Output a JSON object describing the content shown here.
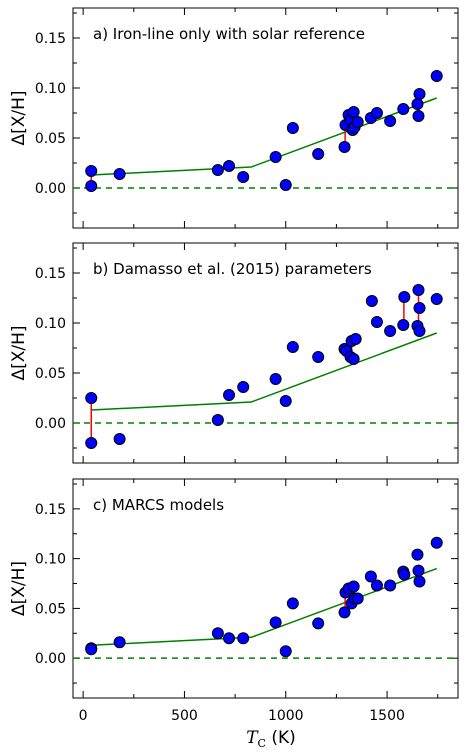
{
  "figure": {
    "ylabel": "Δ[X/H]",
    "xlabel": "T_C (K)",
    "xlabel_main": "T",
    "xlabel_sub": "C",
    "xlabel_unit": " (K)",
    "x_ticks": [
      "0",
      "500",
      "1000",
      "1500"
    ],
    "y_ticks": [
      "0.00",
      "0.05",
      "0.10",
      "0.15"
    ]
  },
  "colors": {
    "point_fill": "#0000ff",
    "point_edge": "#000000",
    "trend_line": "#008000",
    "zero_line": "#008000",
    "error_bar": "#ff0000"
  },
  "chart_data": [
    {
      "type": "scatter",
      "title": "a) Iron-line only with solar reference",
      "xlim": [
        -50,
        1850
      ],
      "ylim": [
        -0.04,
        0.18
      ],
      "grid": false,
      "points": [
        {
          "x": 40,
          "y": 0.017
        },
        {
          "x": 40,
          "y": 0.002
        },
        {
          "x": 180,
          "y": 0.014
        },
        {
          "x": 665,
          "y": 0.018
        },
        {
          "x": 720,
          "y": 0.022
        },
        {
          "x": 790,
          "y": 0.011
        },
        {
          "x": 950,
          "y": 0.031
        },
        {
          "x": 1000,
          "y": 0.003
        },
        {
          "x": 1035,
          "y": 0.06
        },
        {
          "x": 1160,
          "y": 0.034
        },
        {
          "x": 1290,
          "y": 0.041
        },
        {
          "x": 1295,
          "y": 0.063
        },
        {
          "x": 1310,
          "y": 0.073
        },
        {
          "x": 1320,
          "y": 0.068
        },
        {
          "x": 1330,
          "y": 0.058
        },
        {
          "x": 1335,
          "y": 0.076
        },
        {
          "x": 1340,
          "y": 0.061
        },
        {
          "x": 1355,
          "y": 0.066
        },
        {
          "x": 1420,
          "y": 0.07
        },
        {
          "x": 1450,
          "y": 0.075
        },
        {
          "x": 1515,
          "y": 0.067
        },
        {
          "x": 1580,
          "y": 0.079
        },
        {
          "x": 1650,
          "y": 0.084
        },
        {
          "x": 1655,
          "y": 0.072
        },
        {
          "x": 1660,
          "y": 0.094
        },
        {
          "x": 1745,
          "y": 0.112
        }
      ],
      "error_pairs": [
        {
          "x": 40,
          "y_low": 0.002,
          "y_high": 0.017
        },
        {
          "x": 1293,
          "y_low": 0.041,
          "y_high": 0.063
        },
        {
          "x": 1335,
          "y_low": 0.058,
          "y_high": 0.076
        },
        {
          "x": 1655,
          "y_low": 0.072,
          "y_high": 0.094
        }
      ],
      "trend": [
        {
          "x": 40,
          "y": 0.013
        },
        {
          "x": 830,
          "y": 0.021
        },
        {
          "x": 1745,
          "y": 0.09
        }
      ],
      "zero_line": 0
    },
    {
      "type": "scatter",
      "title": "b) Damasso et al. (2015) parameters",
      "xlim": [
        -50,
        1850
      ],
      "ylim": [
        -0.04,
        0.18
      ],
      "grid": false,
      "points": [
        {
          "x": 40,
          "y": 0.025
        },
        {
          "x": 40,
          "y": -0.02
        },
        {
          "x": 180,
          "y": -0.016
        },
        {
          "x": 665,
          "y": 0.003
        },
        {
          "x": 720,
          "y": 0.028
        },
        {
          "x": 790,
          "y": 0.036
        },
        {
          "x": 950,
          "y": 0.044
        },
        {
          "x": 1000,
          "y": 0.022
        },
        {
          "x": 1035,
          "y": 0.076
        },
        {
          "x": 1160,
          "y": 0.066
        },
        {
          "x": 1290,
          "y": 0.074
        },
        {
          "x": 1300,
          "y": 0.072
        },
        {
          "x": 1320,
          "y": 0.066
        },
        {
          "x": 1325,
          "y": 0.082
        },
        {
          "x": 1335,
          "y": 0.064
        },
        {
          "x": 1345,
          "y": 0.084
        },
        {
          "x": 1425,
          "y": 0.122
        },
        {
          "x": 1450,
          "y": 0.101
        },
        {
          "x": 1515,
          "y": 0.092
        },
        {
          "x": 1580,
          "y": 0.098
        },
        {
          "x": 1585,
          "y": 0.126
        },
        {
          "x": 1650,
          "y": 0.097
        },
        {
          "x": 1655,
          "y": 0.133
        },
        {
          "x": 1660,
          "y": 0.115
        },
        {
          "x": 1660,
          "y": 0.092
        },
        {
          "x": 1745,
          "y": 0.124
        }
      ],
      "error_pairs": [
        {
          "x": 40,
          "y_low": -0.02,
          "y_high": 0.025
        },
        {
          "x": 1325,
          "y_low": 0.064,
          "y_high": 0.084
        },
        {
          "x": 1583,
          "y_low": 0.098,
          "y_high": 0.126
        },
        {
          "x": 1655,
          "y_low": 0.092,
          "y_high": 0.133
        }
      ],
      "trend": [
        {
          "x": 40,
          "y": 0.013
        },
        {
          "x": 830,
          "y": 0.021
        },
        {
          "x": 1745,
          "y": 0.09
        }
      ],
      "zero_line": 0
    },
    {
      "type": "scatter",
      "title": "c) MARCS models",
      "xlim": [
        -50,
        1850
      ],
      "ylim": [
        -0.04,
        0.18
      ],
      "grid": false,
      "points": [
        {
          "x": 40,
          "y": 0.01
        },
        {
          "x": 40,
          "y": 0.009
        },
        {
          "x": 180,
          "y": 0.016
        },
        {
          "x": 665,
          "y": 0.025
        },
        {
          "x": 720,
          "y": 0.02
        },
        {
          "x": 790,
          "y": 0.02
        },
        {
          "x": 950,
          "y": 0.036
        },
        {
          "x": 1000,
          "y": 0.007
        },
        {
          "x": 1035,
          "y": 0.055
        },
        {
          "x": 1160,
          "y": 0.035
        },
        {
          "x": 1290,
          "y": 0.046
        },
        {
          "x": 1295,
          "y": 0.066
        },
        {
          "x": 1310,
          "y": 0.07
        },
        {
          "x": 1325,
          "y": 0.055
        },
        {
          "x": 1335,
          "y": 0.072
        },
        {
          "x": 1340,
          "y": 0.06
        },
        {
          "x": 1355,
          "y": 0.06
        },
        {
          "x": 1420,
          "y": 0.082
        },
        {
          "x": 1450,
          "y": 0.073
        },
        {
          "x": 1515,
          "y": 0.073
        },
        {
          "x": 1580,
          "y": 0.087
        },
        {
          "x": 1585,
          "y": 0.084
        },
        {
          "x": 1650,
          "y": 0.104
        },
        {
          "x": 1655,
          "y": 0.088
        },
        {
          "x": 1660,
          "y": 0.077
        },
        {
          "x": 1745,
          "y": 0.116
        }
      ],
      "error_pairs": [
        {
          "x": 1293,
          "y_low": 0.046,
          "y_high": 0.066
        },
        {
          "x": 1335,
          "y_low": 0.055,
          "y_high": 0.072
        },
        {
          "x": 1655,
          "y_low": 0.077,
          "y_high": 0.088
        }
      ],
      "trend": [
        {
          "x": 40,
          "y": 0.013
        },
        {
          "x": 830,
          "y": 0.021
        },
        {
          "x": 1745,
          "y": 0.09
        }
      ],
      "zero_line": 0
    }
  ]
}
